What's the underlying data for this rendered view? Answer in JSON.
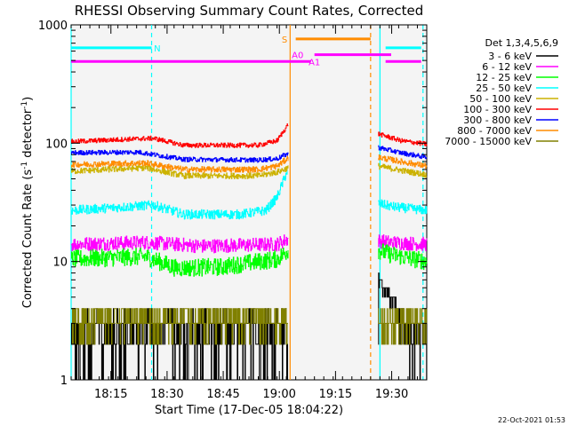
{
  "chart_data": {
    "type": "line",
    "title": "RHESSI Observing Summary Count Rates, Corrected",
    "xlabel": "Start Time (17-Dec-05 18:04:22)",
    "ylabel": "Corrected Count Rate (s-1 detector-1)",
    "ylabel_parts": {
      "pre": "Corrected Count Rate (s",
      "sup1": "-1",
      "mid": " detector",
      "sup2": "-1",
      "post": ")"
    },
    "yscale": "log",
    "ylim": [
      1,
      1000
    ],
    "xlim_minutes": [
      0,
      95
    ],
    "x_unit": "minutes after 18:04:22",
    "x_ticks": [
      {
        "label": "18:15",
        "min": 10.63
      },
      {
        "label": "18:30",
        "min": 25.63
      },
      {
        "label": "18:45",
        "min": 40.63
      },
      {
        "label": "19:00",
        "min": 55.63
      },
      {
        "label": "19:15",
        "min": 70.63
      },
      {
        "label": "19:30",
        "min": 85.63
      }
    ],
    "y_ticks": [
      {
        "label": "1",
        "value": 1
      },
      {
        "label": "10",
        "value": 10
      },
      {
        "label": "100",
        "value": 100
      },
      {
        "label": "1000",
        "value": 1000
      }
    ],
    "legend_title": "Det 1,3,4,5,6,9",
    "legend_position": "right",
    "series": [
      {
        "name": "3 - 6 keV",
        "color": "#000000",
        "seg1": [
          [
            0,
            2.5
          ],
          [
            58,
            2.5
          ]
        ],
        "seg2": [
          [
            82,
            7.2
          ],
          [
            85,
            5
          ],
          [
            88,
            3
          ],
          [
            90,
            2.2
          ],
          [
            95,
            2.2
          ]
        ],
        "noise": 0.9,
        "bins": 2
      },
      {
        "name": "6 - 12 keV",
        "color": "#ff00ff",
        "seg1": [
          [
            0,
            14
          ],
          [
            20,
            14.5
          ],
          [
            35,
            13.5
          ],
          [
            55,
            14
          ],
          [
            58,
            15.5
          ]
        ],
        "seg2": [
          [
            82,
            15
          ],
          [
            85,
            14.5
          ],
          [
            95,
            14
          ]
        ],
        "noise": 0.12,
        "bins": 0
      },
      {
        "name": "12 - 25 keV",
        "color": "#00ff00",
        "seg1": [
          [
            0,
            10.5
          ],
          [
            20,
            11
          ],
          [
            28,
            8.8
          ],
          [
            40,
            9
          ],
          [
            55,
            10.5
          ],
          [
            58,
            12.5
          ]
        ],
        "seg2": [
          [
            82,
            12.5
          ],
          [
            85,
            11.5
          ],
          [
            95,
            10
          ]
        ],
        "noise": 0.15,
        "bins": 0
      },
      {
        "name": "25 - 50 keV",
        "color": "#00ffff",
        "seg1": [
          [
            0,
            27
          ],
          [
            15,
            29
          ],
          [
            22,
            30
          ],
          [
            30,
            25
          ],
          [
            45,
            25
          ],
          [
            52,
            27
          ],
          [
            55,
            35
          ],
          [
            58,
            62
          ]
        ],
        "seg2": [
          [
            82,
            31
          ],
          [
            86,
            29
          ],
          [
            95,
            27
          ]
        ],
        "noise": 0.08,
        "bins": 0
      },
      {
        "name": "50 - 100 keV",
        "color": "#ccb200",
        "seg1": [
          [
            0,
            58
          ],
          [
            20,
            62
          ],
          [
            30,
            53
          ],
          [
            50,
            53
          ],
          [
            55,
            57
          ],
          [
            58,
            62
          ]
        ],
        "seg2": [
          [
            82,
            64
          ],
          [
            88,
            59
          ],
          [
            95,
            54
          ]
        ],
        "noise": 0.05,
        "bins": 0
      },
      {
        "name": "100 - 300 keV",
        "color": "#ff0000",
        "seg1": [
          [
            0,
            103
          ],
          [
            15,
            108
          ],
          [
            22,
            110
          ],
          [
            30,
            96
          ],
          [
            50,
            96
          ],
          [
            55,
            105
          ],
          [
            58,
            145
          ]
        ],
        "seg2": [
          [
            82,
            120
          ],
          [
            88,
            105
          ],
          [
            95,
            98
          ]
        ],
        "noise": 0.04,
        "bins": 0
      },
      {
        "name": "300 - 800 keV",
        "color": "#0000ff",
        "seg1": [
          [
            0,
            83
          ],
          [
            18,
            84
          ],
          [
            30,
            73
          ],
          [
            50,
            72
          ],
          [
            55,
            74
          ],
          [
            58,
            82
          ]
        ],
        "seg2": [
          [
            82,
            92
          ],
          [
            88,
            83
          ],
          [
            95,
            76
          ]
        ],
        "noise": 0.04,
        "bins": 0
      },
      {
        "name": "800 - 7000 keV",
        "color": "#ff8c00",
        "seg1": [
          [
            0,
            66
          ],
          [
            20,
            68
          ],
          [
            30,
            60
          ],
          [
            50,
            60
          ],
          [
            55,
            64
          ],
          [
            58,
            75
          ]
        ],
        "seg2": [
          [
            82,
            76
          ],
          [
            88,
            70
          ],
          [
            95,
            64
          ]
        ],
        "noise": 0.05,
        "bins": 0
      },
      {
        "name": "7000 - 15000 keV",
        "color": "#808000",
        "seg1": [
          [
            0,
            2.8
          ],
          [
            58,
            2.8
          ]
        ],
        "seg2": [
          [
            82,
            3.2
          ],
          [
            86,
            2.9
          ],
          [
            95,
            2.8
          ]
        ],
        "noise": 0.5,
        "bins": 2
      }
    ],
    "state_bars": [
      {
        "label": "N",
        "color": "#00ffff",
        "y": 640,
        "from": 0,
        "to": 21.5,
        "label_at": 23
      },
      {
        "label": "N",
        "color": "#00ffff",
        "y": 640,
        "from": 84,
        "to": 93.5,
        "label_at": null
      },
      {
        "label": "S",
        "color": "#ff8c00",
        "y": 760,
        "from": 60,
        "to": 80,
        "label_at": 57
      },
      {
        "label": "A0",
        "color": "#ff00ff",
        "y": 560,
        "from": 65,
        "to": 85.5,
        "label_at": 60.5
      },
      {
        "label": "A1",
        "color": "#ff00ff",
        "y": 490,
        "from": 0,
        "to": 64,
        "label_at": 65
      },
      {
        "label": "A1",
        "color": "#ff00ff",
        "y": 490,
        "from": 84,
        "to": 93.5,
        "label_at": null
      }
    ],
    "vlines": [
      {
        "x": 0,
        "color": "#00ffff",
        "style": "solid"
      },
      {
        "x": 21.5,
        "color": "#00ffff",
        "style": "dashed"
      },
      {
        "x": 58.5,
        "color": "#ff8c00",
        "style": "solid"
      },
      {
        "x": 80,
        "color": "#ff8c00",
        "style": "dashed"
      },
      {
        "x": 82.5,
        "color": "#00ffff",
        "style": "solid"
      },
      {
        "x": 94,
        "color": "#00ffff",
        "style": "dashed"
      }
    ]
  },
  "footer": {
    "date": "22-Oct-2021 01:53"
  }
}
